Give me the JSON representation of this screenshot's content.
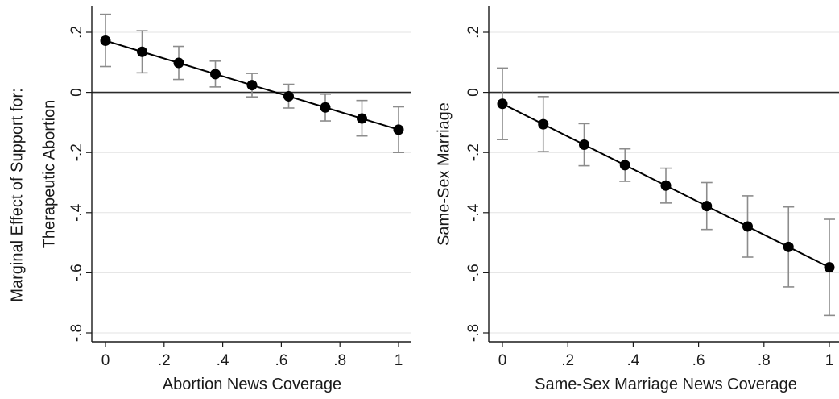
{
  "figure": {
    "shared_ylabel": "Marginal Effect of Support for:"
  },
  "chart_data": [
    {
      "type": "line",
      "xlabel": "Abortion News Coverage",
      "ylabel": "Therapeutic Abortion",
      "xlim": [
        0,
        1
      ],
      "ylim": [
        -0.8,
        0.2
      ],
      "xticks": [
        0,
        0.2,
        0.4,
        0.6,
        0.8,
        1
      ],
      "xtick_labels": [
        "0",
        ".2",
        ".4",
        ".6",
        ".8",
        "1"
      ],
      "yticks": [
        0.2,
        0,
        -0.2,
        -0.4,
        -0.6,
        -0.8
      ],
      "ytick_labels": [
        ".2",
        "0",
        "-.2",
        "-.4",
        "-.6",
        "-.8"
      ],
      "grid": true,
      "reference_line_y": 0,
      "x": [
        0,
        0.125,
        0.25,
        0.375,
        0.5,
        0.625,
        0.75,
        0.875,
        1
      ],
      "y": [
        0.172,
        0.135,
        0.098,
        0.061,
        0.024,
        -0.013,
        -0.05,
        -0.087,
        -0.124
      ],
      "ci_low": [
        0.086,
        0.065,
        0.043,
        0.018,
        -0.015,
        -0.052,
        -0.095,
        -0.145,
        -0.2
      ],
      "ci_high": [
        0.26,
        0.205,
        0.153,
        0.104,
        0.063,
        0.027,
        -0.006,
        -0.027,
        -0.048
      ]
    },
    {
      "type": "line",
      "xlabel": "Same-Sex Marriage News Coverage",
      "ylabel": "Same-Sex Marriage",
      "xlim": [
        0,
        1
      ],
      "ylim": [
        -0.8,
        0.2
      ],
      "xticks": [
        0,
        0.2,
        0.4,
        0.6,
        0.8,
        1
      ],
      "xtick_labels": [
        "0",
        ".2",
        ".4",
        ".6",
        ".8",
        "1"
      ],
      "yticks": [
        0.2,
        0,
        -0.2,
        -0.4,
        -0.6,
        -0.8
      ],
      "ytick_labels": [
        ".2",
        "0",
        "-.2",
        "-.4",
        "-.6",
        "-.8"
      ],
      "grid": true,
      "reference_line_y": 0,
      "x": [
        0,
        0.125,
        0.25,
        0.375,
        0.5,
        0.625,
        0.75,
        0.875,
        1
      ],
      "y": [
        -0.038,
        -0.106,
        -0.174,
        -0.242,
        -0.31,
        -0.378,
        -0.446,
        -0.514,
        -0.582
      ],
      "ci_low": [
        -0.157,
        -0.197,
        -0.244,
        -0.296,
        -0.368,
        -0.456,
        -0.548,
        -0.647,
        -0.742
      ],
      "ci_high": [
        0.081,
        -0.014,
        -0.104,
        -0.188,
        -0.252,
        -0.3,
        -0.344,
        -0.381,
        -0.422
      ]
    }
  ]
}
